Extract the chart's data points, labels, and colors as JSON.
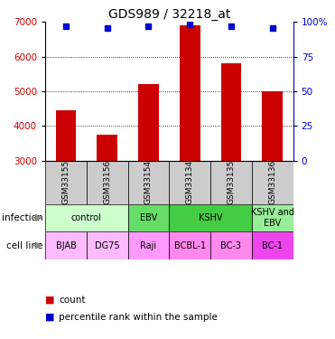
{
  "title": "GDS989 / 32218_at",
  "samples": [
    "GSM33155",
    "GSM33156",
    "GSM33154",
    "GSM33134",
    "GSM33135",
    "GSM33136"
  ],
  "counts": [
    4440,
    3750,
    5200,
    6900,
    5800,
    5000
  ],
  "percentiles": [
    97,
    96,
    97,
    98,
    97,
    96
  ],
  "ymin": 3000,
  "ymax": 7000,
  "yticks_left": [
    3000,
    4000,
    5000,
    6000,
    7000
  ],
  "yticks_right": [
    0,
    25,
    50,
    75,
    100
  ],
  "ytick_right_labels": [
    "0",
    "25",
    "50",
    "75",
    "100%"
  ],
  "bar_color": "#cc0000",
  "dot_color": "#0000cc",
  "left_tick_color": "#cc0000",
  "right_tick_color": "#0000cc",
  "sample_bg": "#cccccc",
  "infection_spans": [
    {
      "label": "control",
      "start": 0,
      "end": 2,
      "color": "#ccffcc"
    },
    {
      "label": "EBV",
      "start": 2,
      "end": 3,
      "color": "#66dd66"
    },
    {
      "label": "KSHV",
      "start": 3,
      "end": 5,
      "color": "#44cc44"
    },
    {
      "label": "KSHV and\nEBV",
      "start": 5,
      "end": 6,
      "color": "#99ee99"
    }
  ],
  "cell_spans": [
    {
      "label": "BJAB",
      "start": 0,
      "end": 1,
      "color": "#ffbbff"
    },
    {
      "label": "DG75",
      "start": 1,
      "end": 2,
      "color": "#ffbbff"
    },
    {
      "label": "Raji",
      "start": 2,
      "end": 3,
      "color": "#ff99ff"
    },
    {
      "label": "BCBL-1",
      "start": 3,
      "end": 4,
      "color": "#ff88ee"
    },
    {
      "label": "BC-3",
      "start": 4,
      "end": 5,
      "color": "#ff88ee"
    },
    {
      "label": "BC-1",
      "start": 5,
      "end": 6,
      "color": "#ee44ee"
    }
  ]
}
